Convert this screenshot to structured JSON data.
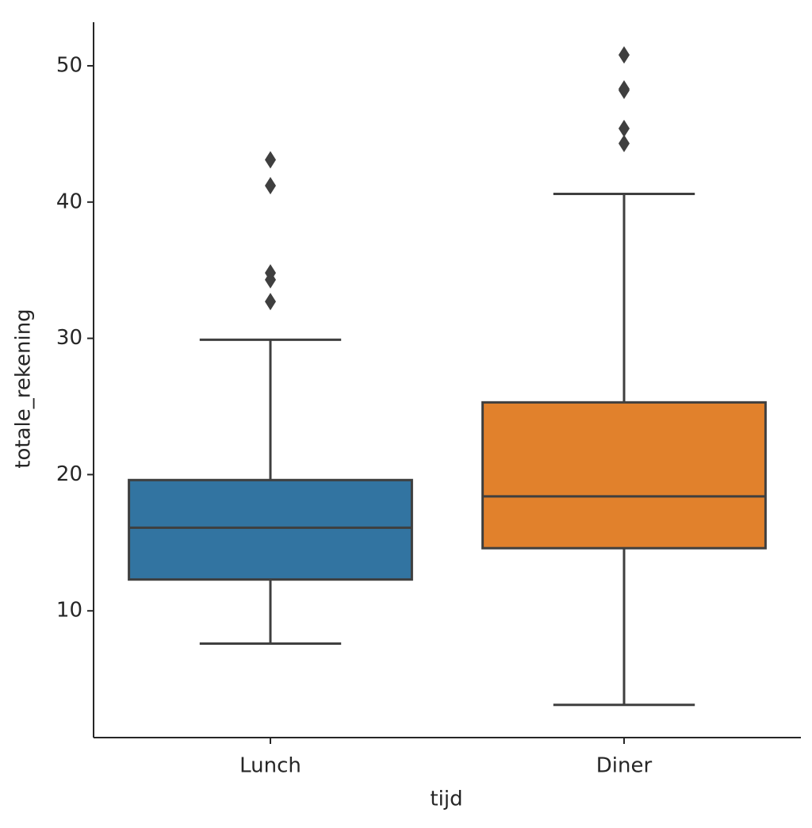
{
  "chart_data": {
    "type": "box",
    "xlabel": "tijd",
    "ylabel": "totale_rekening",
    "categories": [
      "Lunch",
      "Diner"
    ],
    "boxes": [
      {
        "color": "#3274a1",
        "whislo": 7.6,
        "q1": 12.3,
        "med": 16.1,
        "q3": 19.6,
        "whishi": 29.9,
        "fliers": [
          32.7,
          34.3,
          34.8,
          41.2,
          43.1
        ]
      },
      {
        "color": "#e1812c",
        "whislo": 3.1,
        "q1": 14.6,
        "med": 18.4,
        "q3": 25.3,
        "whishi": 40.6,
        "fliers": [
          44.3,
          45.4,
          48.2,
          48.3,
          50.8
        ]
      }
    ],
    "ylim": [
      0.7,
      53.2
    ],
    "yticks": [
      10,
      20,
      30,
      40,
      50
    ],
    "grid": false
  }
}
